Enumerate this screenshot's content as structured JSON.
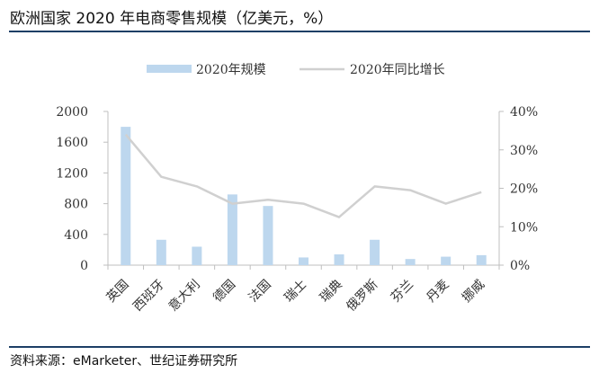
{
  "header": {
    "title": "欧洲国家 2020 年电商零售规模（亿美元，%）"
  },
  "footer": {
    "source": "资料来源：eMarketer、世纪证券研究所"
  },
  "colors": {
    "bar": "#bdd7ee",
    "line": "#d0d0d0",
    "rule": "#1d3f66",
    "axis": "#bfbfbf"
  },
  "chart_data": {
    "type": "bar",
    "categories": [
      "英国",
      "西班牙",
      "意大利",
      "德国",
      "法国",
      "瑞士",
      "瑞典",
      "俄罗斯",
      "芬兰",
      "丹麦",
      "挪威"
    ],
    "series": [
      {
        "name": "2020年规模",
        "type": "bar",
        "axis": "left",
        "values": [
          1800,
          330,
          240,
          920,
          770,
          100,
          140,
          330,
          80,
          110,
          130
        ]
      },
      {
        "name": "2020年同比增长",
        "type": "line",
        "axis": "right",
        "values": [
          34,
          23,
          20.5,
          16,
          17,
          16,
          12.5,
          20.5,
          19.5,
          16,
          19
        ]
      }
    ],
    "y_left": {
      "ylim": [
        0,
        2000
      ],
      "ticks": [
        "0",
        "400",
        "800",
        "1200",
        "1600",
        "2000"
      ]
    },
    "y_right": {
      "ylim": [
        0,
        40
      ],
      "ticks": [
        "0%",
        "10%",
        "20%",
        "30%",
        "40%"
      ]
    },
    "legend": "top",
    "grid": false
  }
}
